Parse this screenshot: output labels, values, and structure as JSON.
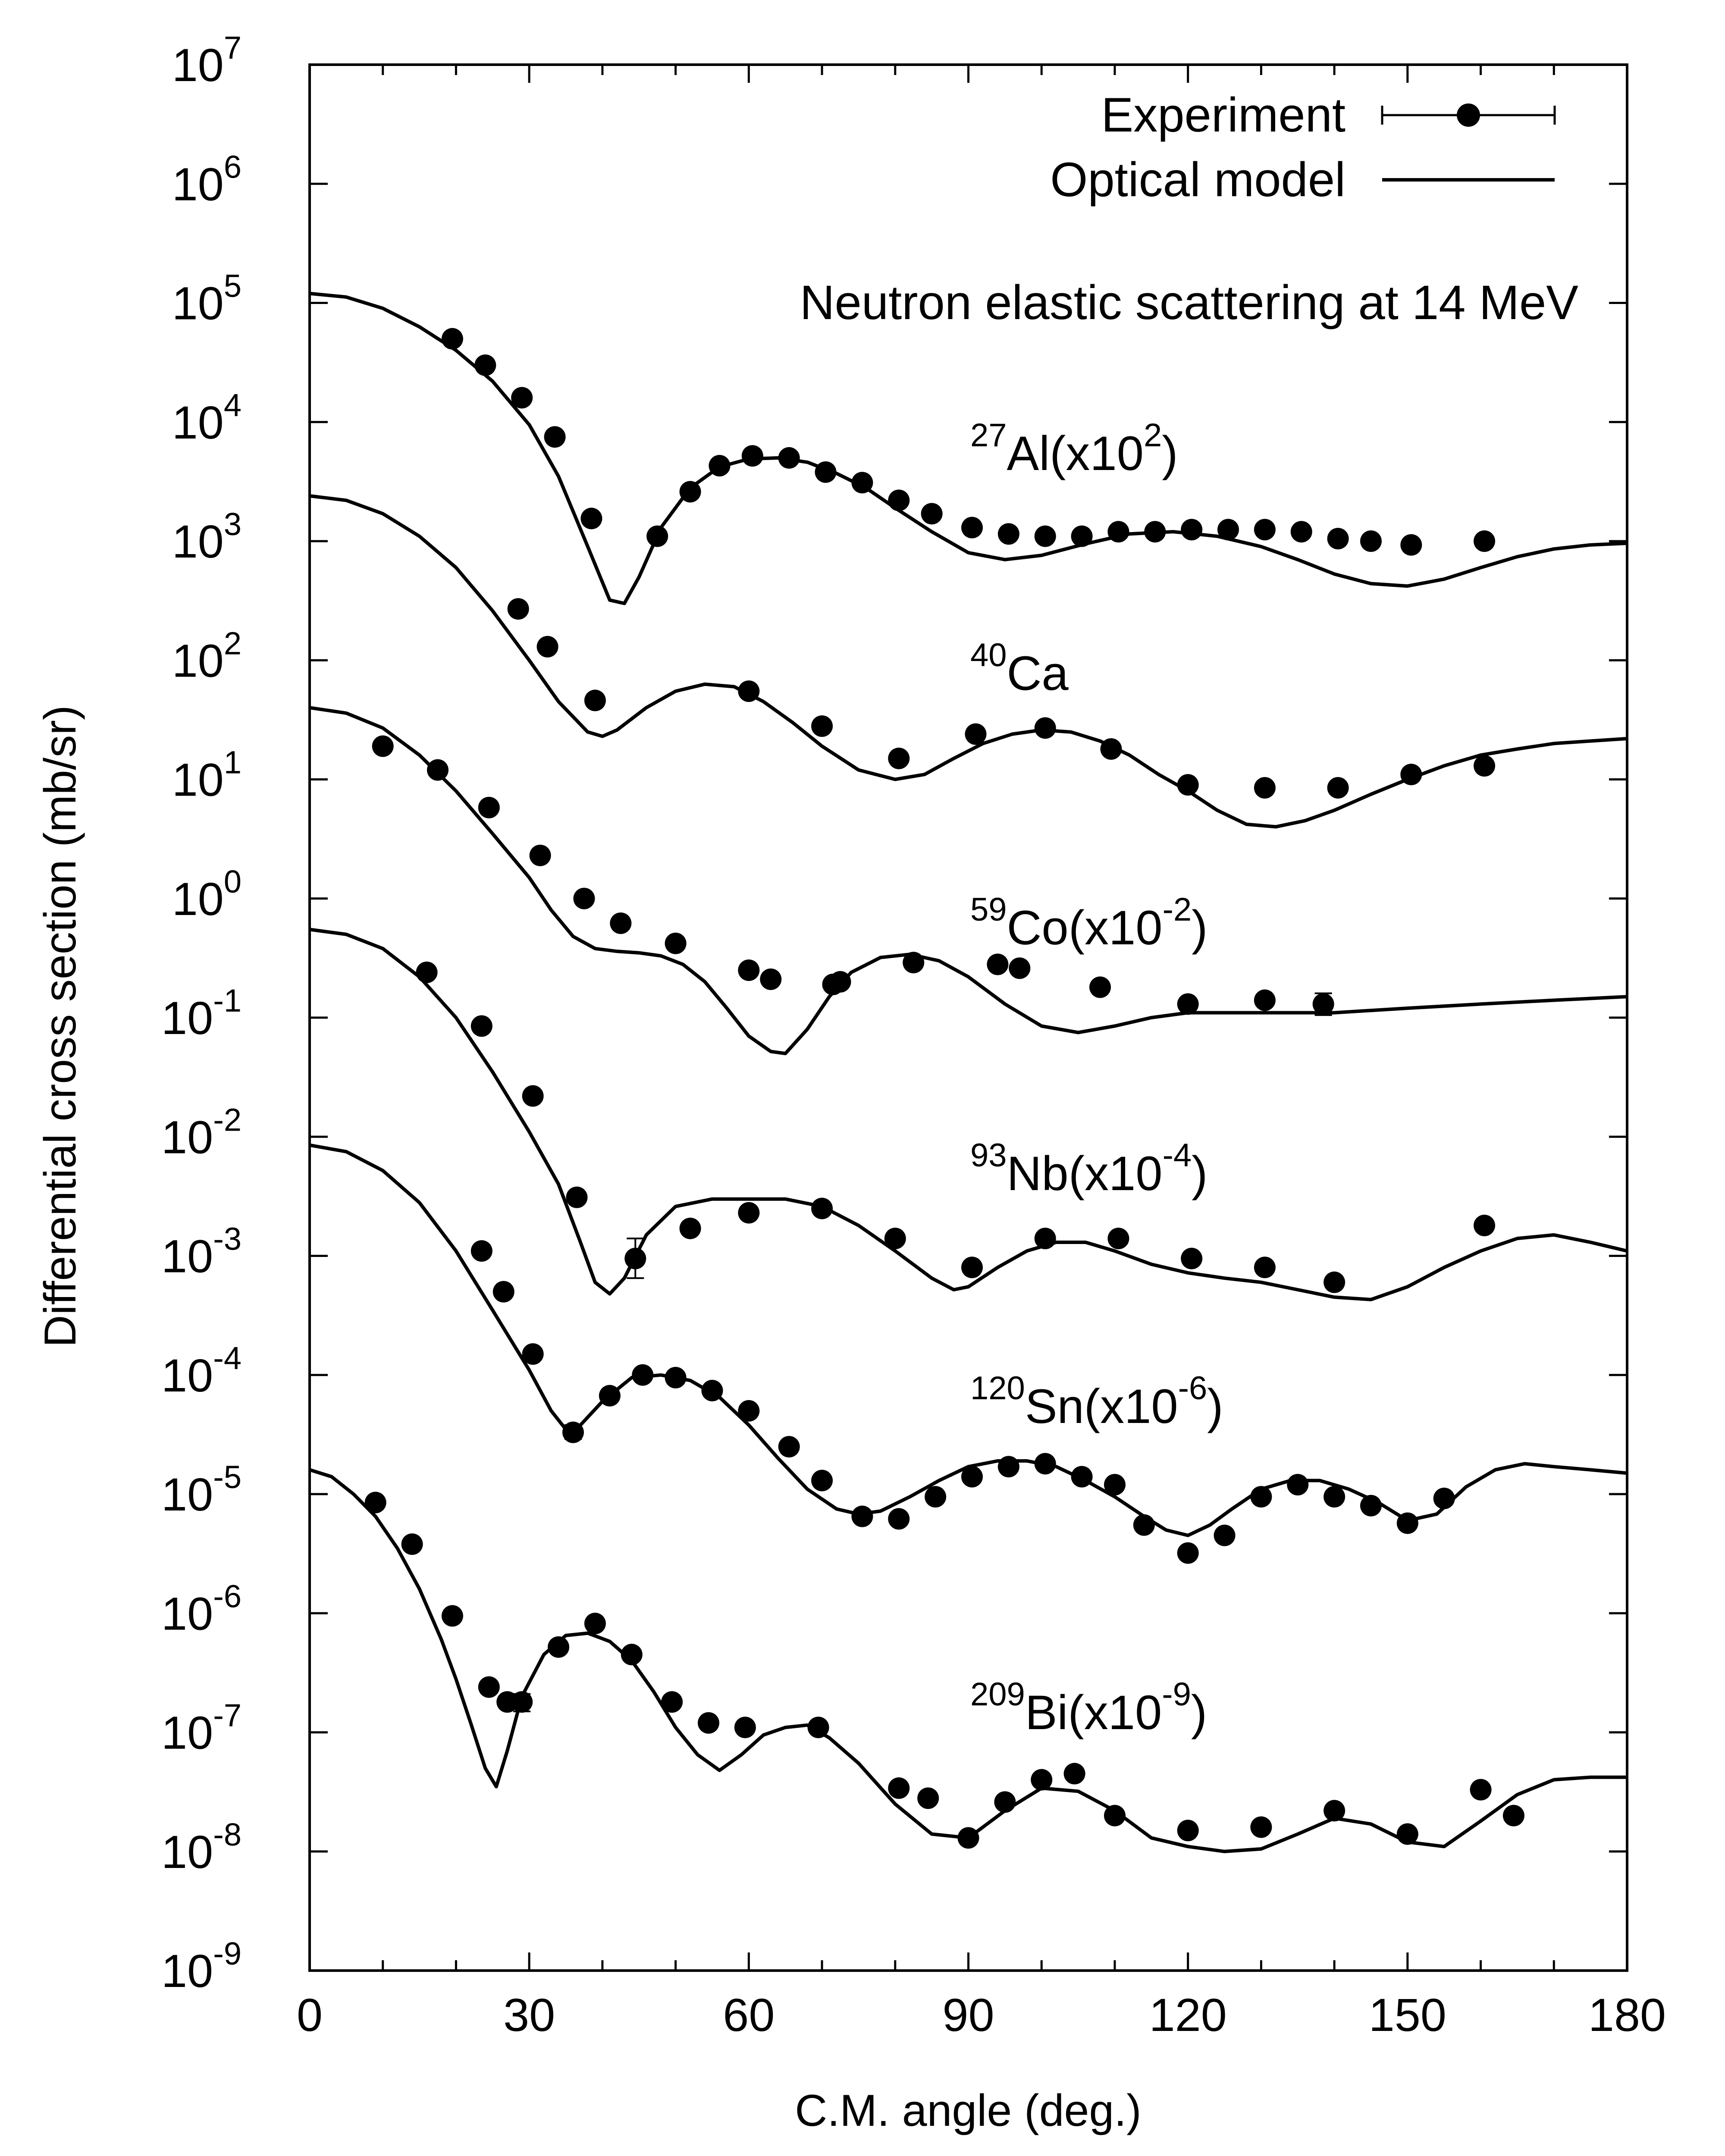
{
  "chart_data": {
    "type": "line",
    "xlabel": "C.M. angle (deg.)",
    "ylabel": "Differential cross section (mb/sr)",
    "xlim": [
      0,
      180
    ],
    "ylim": [
      1e-09,
      10000000.0
    ],
    "y_scale": "log",
    "grid": false,
    "legend_placement": "top-right",
    "x_ticks": [
      "0",
      "30",
      "60",
      "90",
      "120",
      "150",
      "180"
    ],
    "y_ticks": [
      {
        "base": "10",
        "exp": "-9"
      },
      {
        "base": "10",
        "exp": "-8"
      },
      {
        "base": "10",
        "exp": "-7"
      },
      {
        "base": "10",
        "exp": "-6"
      },
      {
        "base": "10",
        "exp": "-5"
      },
      {
        "base": "10",
        "exp": "-4"
      },
      {
        "base": "10",
        "exp": "-3"
      },
      {
        "base": "10",
        "exp": "-2"
      },
      {
        "base": "10",
        "exp": "-1"
      },
      {
        "base": "10",
        "exp": "0"
      },
      {
        "base": "10",
        "exp": "1"
      },
      {
        "base": "10",
        "exp": "2"
      },
      {
        "base": "10",
        "exp": "3"
      },
      {
        "base": "10",
        "exp": "4"
      },
      {
        "base": "10",
        "exp": "5"
      },
      {
        "base": "10",
        "exp": "6"
      },
      {
        "base": "10",
        "exp": "7"
      }
    ],
    "legend": [
      {
        "label": "Experiment",
        "style": "points-with-errorbar"
      },
      {
        "label": "Optical model",
        "style": "line"
      }
    ],
    "annotation": "Neutron elastic scattering at 14 MeV",
    "series": [
      {
        "name": "Al",
        "label": {
          "sup": "27",
          "main": "Al(x10",
          "exp": "2",
          "tail": ")"
        },
        "model": {
          "x": [
            0,
            5,
            10,
            15,
            20,
            25,
            30,
            34,
            38,
            41,
            43,
            45,
            48,
            52,
            56,
            60,
            64,
            68,
            72,
            76,
            80,
            85,
            90,
            95,
            100,
            106,
            112,
            118,
            124,
            130,
            135,
            140,
            145,
            150,
            155,
            160,
            165,
            170,
            175,
            180
          ],
          "y": [
            120000,
            112000,
            90000,
            63000,
            40000,
            22000,
            9500,
            3500,
            900,
            320,
            300,
            500,
            1300,
            2800,
            4200,
            4900,
            5000,
            4600,
            3700,
            2800,
            1900,
            1200,
            800,
            700,
            760,
            950,
            1150,
            1200,
            1100,
            900,
            700,
            530,
            440,
            420,
            480,
            600,
            740,
            860,
            930,
            960
          ]
        },
        "experiment": {
          "x": [
            19.5,
            24,
            29,
            33.5,
            38.5,
            47.5,
            52,
            56,
            60.5,
            65.5,
            70.5,
            75.5,
            80.5,
            85,
            90.5,
            95.5,
            100.5,
            105.5,
            110.5,
            115.5,
            120.5,
            125.5,
            130.5,
            135.5,
            140.5,
            145,
            150.5,
            160.5
          ],
          "y": [
            50000,
            30000,
            16000,
            7500,
            1550,
            1100,
            2600,
            4300,
            5200,
            5000,
            3800,
            3100,
            2200,
            1700,
            1300,
            1150,
            1100,
            1100,
            1200,
            1200,
            1250,
            1250,
            1250,
            1200,
            1050,
            1000,
            930,
            1000
          ]
        }
      },
      {
        "name": "Ca",
        "label": {
          "sup": "40",
          "main": "Ca",
          "exp": "",
          "tail": ""
        },
        "model": {
          "x": [
            0,
            5,
            10,
            15,
            20,
            25,
            30,
            34,
            38,
            40,
            42,
            46,
            50,
            54,
            58,
            62,
            66,
            70,
            75,
            80,
            84,
            88,
            92,
            96,
            100,
            104,
            108,
            112,
            116,
            120,
            124,
            128,
            132,
            136,
            140,
            145,
            150,
            155,
            160,
            165,
            170,
            175,
            180
          ],
          "y": [
            2400,
            2200,
            1700,
            1100,
            600,
            260,
            100,
            45,
            25,
            23,
            26,
            40,
            55,
            63,
            60,
            45,
            30,
            19,
            12,
            10,
            11,
            15,
            20,
            24,
            26,
            25,
            21,
            16,
            11,
            8,
            5.5,
            4.2,
            4,
            4.5,
            5.5,
            7.5,
            10,
            13,
            16,
            18,
            20,
            21,
            22
          ]
        },
        "experiment": {
          "x": [
            28.5,
            32.5,
            39,
            60,
            70,
            80.5,
            91,
            100.5,
            109.5,
            120,
            130.5,
            140.5,
            150.5,
            160.5
          ],
          "y": [
            270,
            130,
            46,
            55,
            28,
            15,
            24,
            27,
            18,
            9,
            8.5,
            8.5,
            11,
            13
          ]
        }
      },
      {
        "name": "Co",
        "label": {
          "sup": "59",
          "main": "Co(x10",
          "exp": "-2",
          "tail": ")"
        },
        "model": {
          "x": [
            0,
            5,
            10,
            15,
            20,
            25,
            30,
            33,
            36,
            39,
            42,
            45,
            48,
            51,
            54,
            57,
            60,
            63,
            65,
            68,
            71,
            74,
            78,
            82,
            86,
            90,
            95,
            100,
            105,
            110,
            115,
            120,
            130,
            140,
            150,
            160,
            170,
            180
          ],
          "y": [
            40,
            36,
            27,
            16,
            8,
            3.5,
            1.5,
            0.8,
            0.48,
            0.38,
            0.36,
            0.35,
            0.33,
            0.28,
            0.2,
            0.12,
            0.07,
            0.052,
            0.05,
            0.08,
            0.15,
            0.24,
            0.32,
            0.34,
            0.3,
            0.22,
            0.13,
            0.085,
            0.075,
            0.085,
            0.1,
            0.11,
            0.11,
            0.11,
            0.12,
            0.13,
            0.14,
            0.15
          ]
        },
        "experiment": {
          "x": [
            10,
            17.5,
            24.5,
            31.5,
            37.5,
            42.5,
            50,
            60,
            63,
            71.5,
            72.5,
            82.5,
            94,
            97,
            108,
            120,
            130.5,
            138.5
          ],
          "y": [
            19,
            12,
            5.8,
            2.3,
            1,
            0.62,
            0.42,
            0.25,
            0.21,
            0.19,
            0.2,
            0.29,
            0.28,
            0.26,
            0.18,
            0.13,
            0.14,
            0.13
          ]
        }
      },
      {
        "name": "Nb",
        "label": {
          "sup": "93",
          "main": "Nb(x10",
          "exp": "-4",
          "tail": ")"
        },
        "model": {
          "x": [
            0,
            5,
            10,
            15,
            20,
            25,
            30,
            34,
            37,
            39,
            41,
            43,
            46,
            50,
            55,
            60,
            65,
            70,
            75,
            80,
            85,
            88,
            90,
            94,
            98,
            102,
            106,
            110,
            115,
            120,
            125,
            130,
            135,
            140,
            145,
            150,
            155,
            160,
            165,
            170,
            175,
            180
          ],
          "y": [
            0.55,
            0.5,
            0.38,
            0.22,
            0.1,
            0.035,
            0.011,
            0.004,
            0.0013,
            0.0006,
            0.00048,
            0.00065,
            0.0015,
            0.0026,
            0.003,
            0.003,
            0.003,
            0.0026,
            0.0018,
            0.0011,
            0.00065,
            0.00052,
            0.00055,
            0.0008,
            0.0011,
            0.0013,
            0.0013,
            0.0011,
            0.00085,
            0.00072,
            0.00065,
            0.0006,
            0.00052,
            0.00045,
            0.00043,
            0.00055,
            0.0008,
            0.0011,
            0.0014,
            0.0015,
            0.0013,
            0.0011
          ]
        },
        "experiment": {
          "x": [
            16,
            23.5,
            30.5,
            36.5,
            44.5,
            52,
            60,
            70,
            80,
            90.5,
            100.5,
            110.5,
            120.5,
            130.5,
            140,
            160.5
          ],
          "y": [
            0.24,
            0.085,
            0.022,
            0.0031,
            0.00095,
            0.0017,
            0.0023,
            0.0025,
            0.0014,
            0.0008,
            0.0014,
            0.0014,
            0.00095,
            0.0008,
            0.0006,
            0.0018
          ]
        }
      },
      {
        "name": "Sn",
        "label": {
          "sup": "120",
          "main": "Sn(x10",
          "exp": "-6",
          "tail": ")"
        },
        "model": {
          "x": [
            0,
            5,
            10,
            15,
            20,
            25,
            30,
            33,
            35,
            37,
            40,
            44,
            48,
            52,
            56,
            60,
            64,
            68,
            72,
            75,
            78,
            82,
            86,
            90,
            94,
            98,
            102,
            106,
            110,
            114,
            117,
            120,
            123,
            126,
            130,
            134,
            138,
            142,
            146,
            150,
            154,
            158,
            162,
            166,
            170,
            175,
            180
          ],
          "y": [
            0.0085,
            0.0075,
            0.0052,
            0.0028,
            0.0011,
            0.00035,
            0.00011,
            5e-05,
            3.5e-05,
            3.8e-05,
            6e-05,
            9.5e-05,
            0.0001,
            9e-05,
            6.5e-05,
            3.8e-05,
            2e-05,
            1.1e-05,
            7.5e-06,
            6.8e-06,
            7.2e-06,
            9.5e-06,
            1.3e-05,
            1.7e-05,
            1.9e-05,
            1.9e-05,
            1.7e-05,
            1.3e-05,
            9.5e-06,
            6.5e-06,
            5e-06,
            4.5e-06,
            5.5e-06,
            7.5e-06,
            1.1e-05,
            1.3e-05,
            1.3e-05,
            1.1e-05,
            8.5e-06,
            6e-06,
            6.8e-06,
            1.15e-05,
            1.6e-05,
            1.8e-05,
            1.7e-05,
            1.6e-05,
            1.5e-05
          ]
        },
        "experiment": {
          "x": [
            23.5,
            26.5,
            30.5,
            36,
            41,
            45.5,
            50,
            55,
            60,
            65.5,
            70,
            75.5,
            80.5,
            85.5,
            90.5,
            95.5,
            100.5,
            105.5,
            110,
            114,
            120,
            125,
            130,
            135,
            140,
            145,
            150,
            155
          ],
          "y": [
            0.0011,
            0.0005,
            0.00015,
            3.3e-05,
            6.7e-05,
            0.0001,
            9.5e-05,
            7.4e-05,
            5e-05,
            2.5e-05,
            1.3e-05,
            6.5e-06,
            6.2e-06,
            9.5e-06,
            1.4e-05,
            1.7e-05,
            1.8e-05,
            1.4e-05,
            1.2e-05,
            5.5e-06,
            3.2e-06,
            4.5e-06,
            9.5e-06,
            1.2e-05,
            9.5e-06,
            8e-06,
            5.7e-06,
            9.2e-06
          ]
        }
      },
      {
        "name": "Bi",
        "label": {
          "sup": "209",
          "main": "Bi(x10",
          "exp": "-9",
          "tail": ")"
        },
        "model": {
          "x": [
            0,
            3,
            6,
            9,
            12,
            15,
            18,
            20,
            22,
            24,
            25.5,
            27,
            29,
            32,
            35,
            38,
            41,
            44,
            47,
            50,
            53,
            56,
            59,
            62,
            65,
            68,
            71,
            75,
            80,
            85,
            90,
            95,
            100,
            105,
            110,
            115,
            120,
            125,
            130,
            135,
            140,
            145,
            150,
            155,
            160,
            165,
            170,
            175,
            180
          ],
          "y": [
            1.6e-05,
            1.4e-05,
            1e-05,
            6.5e-06,
            3.5e-06,
            1.6e-06,
            6e-07,
            2.8e-07,
            1.2e-07,
            5e-08,
            3.5e-08,
            7e-08,
            2e-07,
            4.5e-07,
            6.5e-07,
            6.8e-07,
            5.8e-07,
            4e-07,
            2.2e-07,
            1.1e-07,
            6.5e-08,
            4.8e-08,
            6.5e-08,
            9.5e-08,
            1.1e-07,
            1.15e-07,
            9e-08,
            5.5e-08,
            2.5e-08,
            1.4e-08,
            1.3e-08,
            2.2e-08,
            3.4e-08,
            3.2e-08,
            2.2e-08,
            1.3e-08,
            1.1e-08,
            1e-08,
            1.05e-08,
            1.4e-08,
            1.9e-08,
            1.7e-08,
            1.2e-08,
            1.1e-08,
            1.8e-08,
            3e-08,
            4e-08,
            4.2e-08,
            4.2e-08
          ]
        },
        "experiment": {
          "x": [
            9,
            14,
            19.5,
            24.5,
            27,
            29,
            34,
            39,
            44,
            49.5,
            54.5,
            59.5,
            69.5,
            80.5,
            84.5,
            90,
            95,
            100,
            104.5,
            110,
            120,
            130,
            140,
            150,
            160,
            164.5
          ],
          "y": [
            8.5e-06,
            3.8e-06,
            9.5e-07,
            2.4e-07,
            1.8e-07,
            1.8e-07,
            5.2e-07,
            8.2e-07,
            4.5e-07,
            1.8e-07,
            1.2e-07,
            1.1e-07,
            1.1e-07,
            3.4e-08,
            2.8e-08,
            1.3e-08,
            2.6e-08,
            4e-08,
            4.5e-08,
            2e-08,
            1.5e-08,
            1.6e-08,
            2.2e-08,
            1.4e-08,
            3.3e-08,
            2e-08
          ]
        }
      }
    ]
  }
}
